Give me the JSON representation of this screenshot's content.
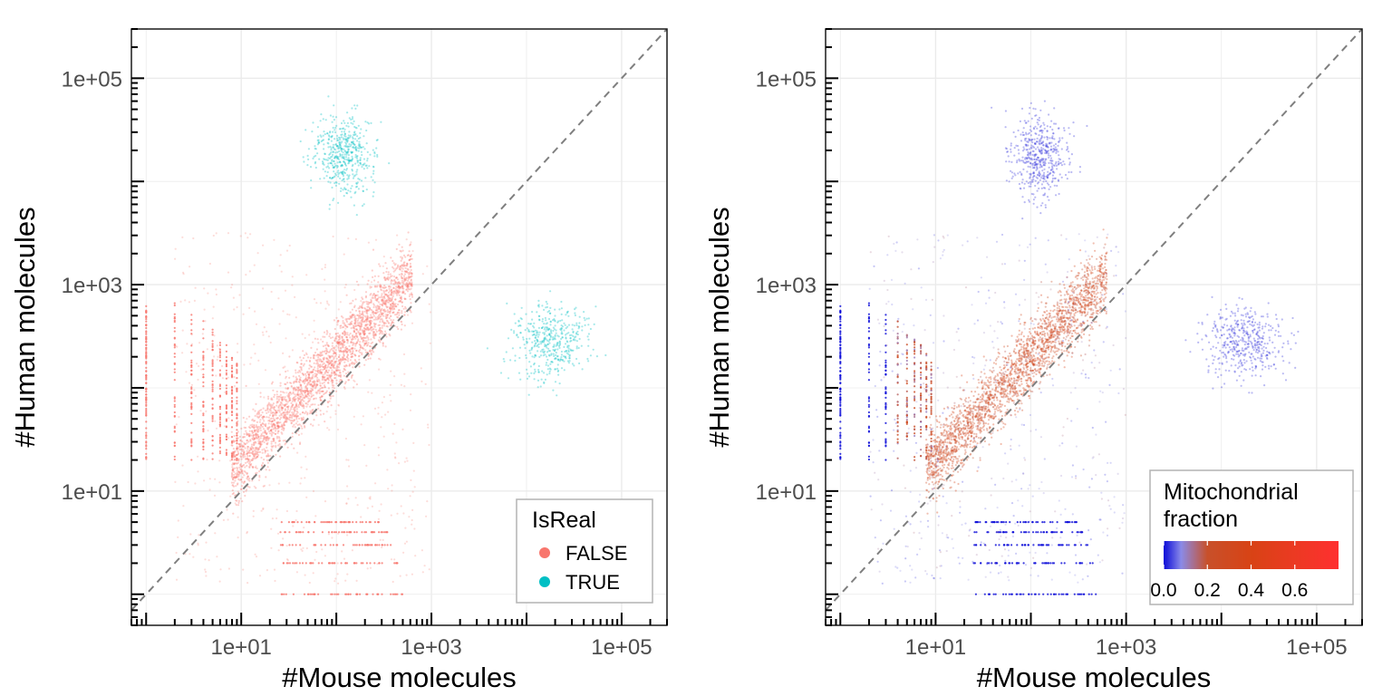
{
  "colors": {
    "false_series": "#F8766D",
    "true_series": "#00BFC4",
    "low_mito": "#1a1adc",
    "mid_mito": "#d84315",
    "high_mito": "#ff3030",
    "diagonal": "#7f7f7f",
    "grid": "#ebebeb",
    "axis_text": "#4d4d4d"
  },
  "chart_data": [
    {
      "type": "scatter",
      "panel": "left",
      "xlabel": "#Mouse molecules",
      "ylabel": "#Human molecules",
      "xscale": "log10",
      "yscale": "log10",
      "xlim": [
        0.7,
        300000
      ],
      "ylim": [
        0.5,
        300000
      ],
      "xticks": [
        10,
        1000,
        100000
      ],
      "xtick_labels": [
        "1e+01",
        "1e+03",
        "1e+05"
      ],
      "yticks": [
        10,
        1000,
        100000
      ],
      "ytick_labels": [
        "1e+01",
        "1e+03",
        "1e+05"
      ],
      "reference_line": "y = x (dashed)",
      "grid": true,
      "legend": {
        "title": "IsReal",
        "position": "bottom-right",
        "entries": [
          {
            "label": "FALSE",
            "color": "#F8766D"
          },
          {
            "label": "TRUE",
            "color": "#00BFC4"
          }
        ]
      },
      "series": [
        {
          "name": "FALSE",
          "color": "#F8766D",
          "clusters": [
            {
              "kind": "diagonal_cloud",
              "x_range": [
                10,
                600
              ],
              "y_over_x": 2.4,
              "count": 3000
            },
            {
              "kind": "human_only_column",
              "x": 1,
              "y_range": [
                20,
                900
              ]
            },
            {
              "kind": "discrete_mouse_columns",
              "x": [
                2,
                3,
                4,
                5,
                6,
                7,
                8,
                9
              ],
              "y_range": [
                20,
                900
              ]
            },
            {
              "kind": "discrete_human_rows",
              "y": [
                1,
                2,
                3,
                4,
                5
              ],
              "x_range": [
                25,
                500
              ]
            }
          ]
        },
        {
          "name": "TRUE",
          "color": "#00BFC4",
          "clusters": [
            {
              "kind": "human_cell_cluster",
              "x_center": 120,
              "y_center": 18000,
              "count": 600
            },
            {
              "kind": "mouse_cell_cluster",
              "x_center": 20000,
              "y_center": 300,
              "count": 500
            }
          ]
        }
      ]
    },
    {
      "type": "scatter",
      "panel": "right",
      "xlabel": "#Mouse molecules",
      "ylabel": "#Human molecules",
      "xscale": "log10",
      "yscale": "log10",
      "xlim": [
        0.7,
        300000
      ],
      "ylim": [
        0.5,
        300000
      ],
      "xticks": [
        10,
        1000,
        100000
      ],
      "xtick_labels": [
        "1e+01",
        "1e+03",
        "1e+05"
      ],
      "yticks": [
        10,
        1000,
        100000
      ],
      "ytick_labels": [
        "1e+01",
        "1e+03",
        "1e+05"
      ],
      "reference_line": "y = x (dashed)",
      "grid": true,
      "color_by": "Mitochondrial fraction",
      "legend": {
        "title": "Mitochondrial\nfraction",
        "position": "bottom-right",
        "scale": {
          "range": [
            0.0,
            0.8
          ],
          "ticks": [
            0.0,
            0.2,
            0.4,
            0.6
          ],
          "tick_labels": [
            "0.0",
            "0.2",
            "0.4",
            "0.6"
          ],
          "stops": [
            {
              "value": 0.0,
              "color": "#0a0ad8"
            },
            {
              "value": 0.08,
              "color": "#8a8ae8"
            },
            {
              "value": 0.2,
              "color": "#c8502a"
            },
            {
              "value": 0.4,
              "color": "#d84315"
            },
            {
              "value": 0.8,
              "color": "#ff3030"
            }
          ]
        }
      },
      "series": [
        {
          "clusters": [
            {
              "kind": "diagonal_cloud",
              "x_range": [
                10,
                600
              ],
              "y_over_x": 2.4,
              "mito_fraction_range": [
                0.1,
                0.5
              ]
            },
            {
              "kind": "human_cell_cluster",
              "x_center": 120,
              "y_center": 18000,
              "mito_fraction": 0.05
            },
            {
              "kind": "mouse_cell_cluster",
              "x_center": 20000,
              "y_center": 300,
              "mito_fraction": 0.05
            },
            {
              "kind": "discrete_mouse_columns",
              "mito_fraction": 0.0
            },
            {
              "kind": "discrete_human_rows",
              "mito_fraction": 0.0
            }
          ]
        }
      ]
    }
  ]
}
